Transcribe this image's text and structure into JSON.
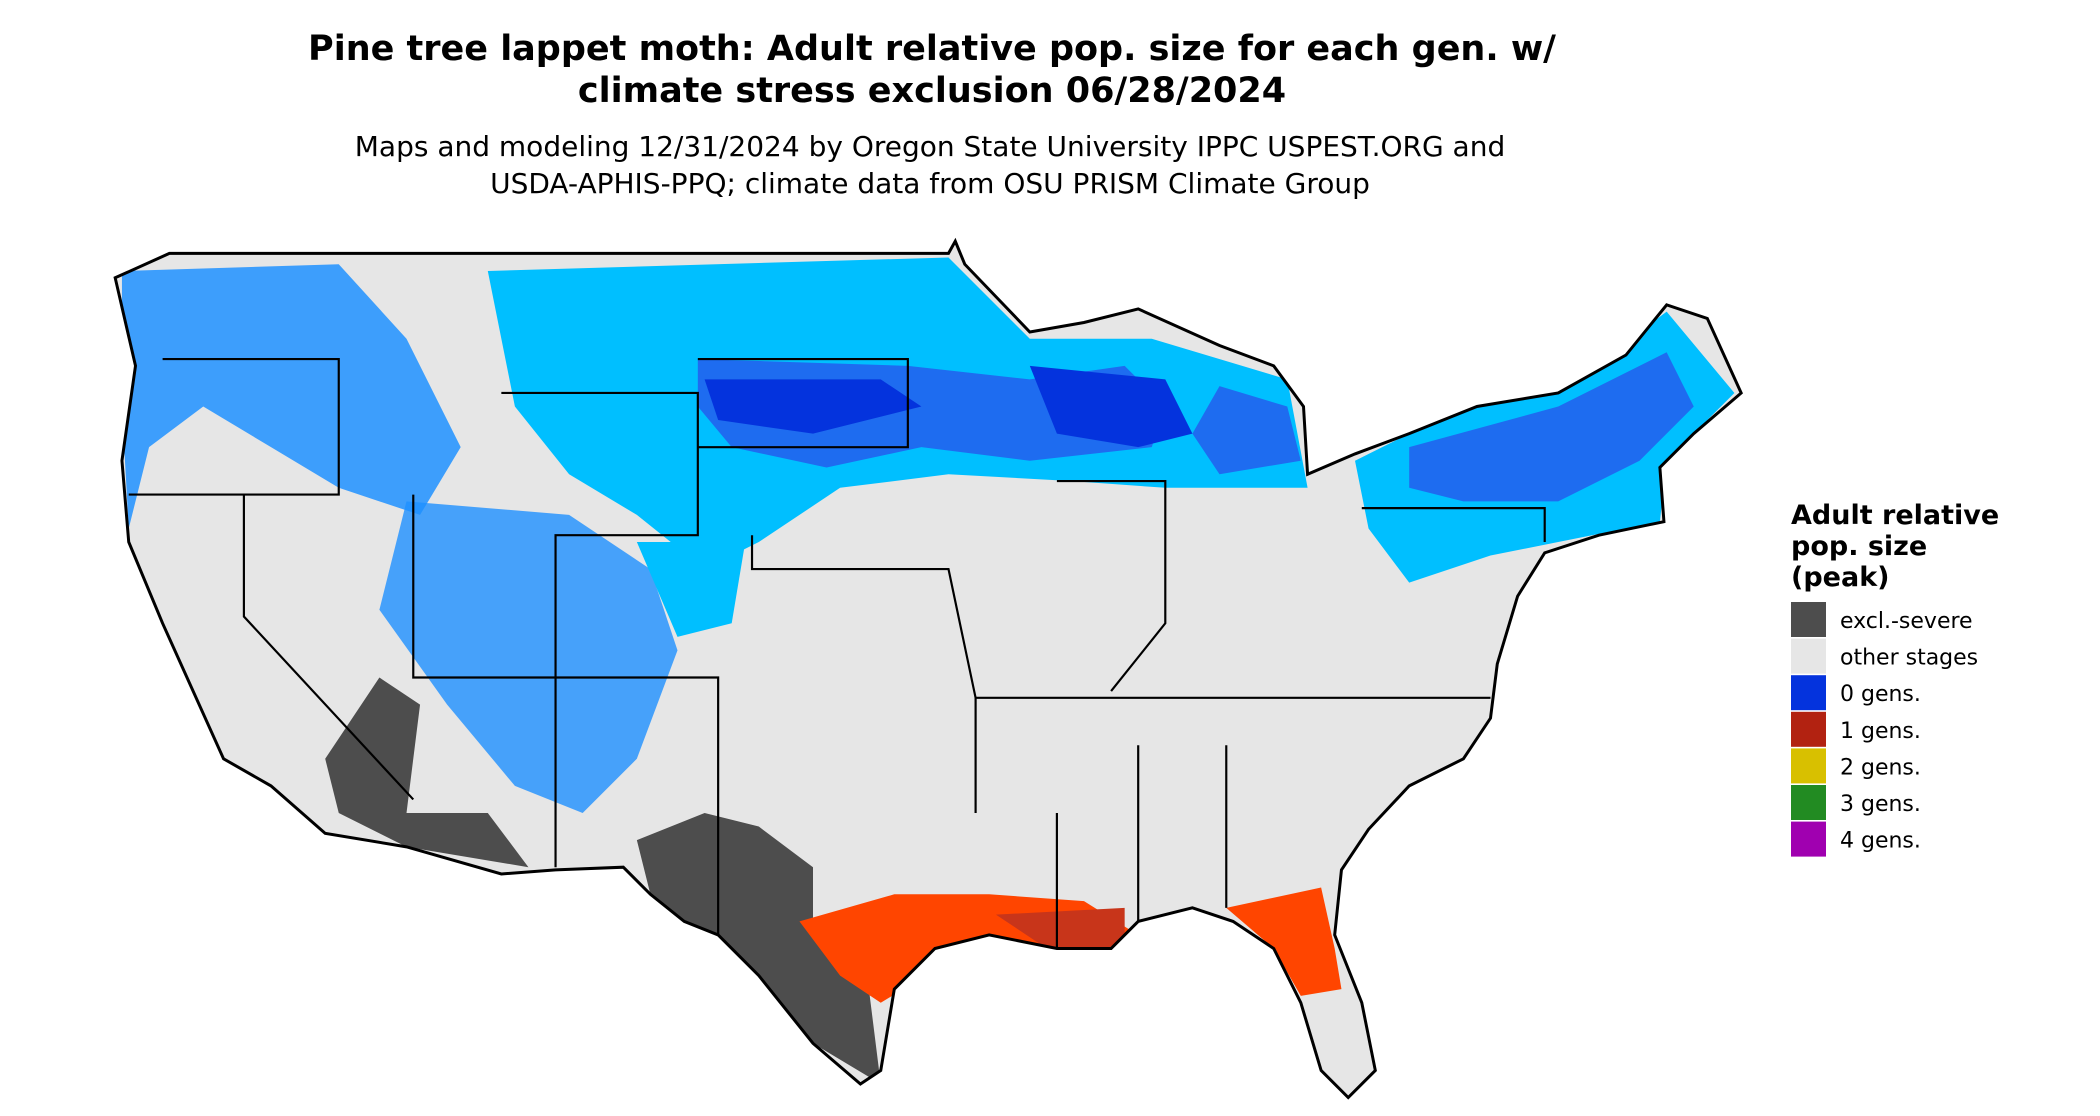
{
  "header": {
    "title_lines": [
      "Pine tree lappet moth: Adult relative pop. size for each gen. w/",
      "climate stress exclusion 06/28/2024"
    ],
    "subtitle_lines": [
      "Maps and modeling 12/31/2024 by Oregon State University IPPC USPEST.ORG and",
      "USDA-APHIS-PPQ; climate data from OSU PRISM Climate Group"
    ]
  },
  "legend": {
    "title_lines": [
      "Adult relative",
      "pop. size",
      "(peak)"
    ],
    "items": [
      {
        "label": "excl.-severe",
        "color": "#4d4d4d"
      },
      {
        "label": "other stages",
        "color": "#e6e6e6"
      },
      {
        "label": "0 gens.",
        "color": "#0433dd"
      },
      {
        "label": "1 gens.",
        "color": "#b22211"
      },
      {
        "label": "2 gens.",
        "color": "#d8c000"
      },
      {
        "label": "3 gens.",
        "color": "#228b22"
      },
      {
        "label": "4 gens.",
        "color": "#a000b0"
      }
    ]
  }
}
